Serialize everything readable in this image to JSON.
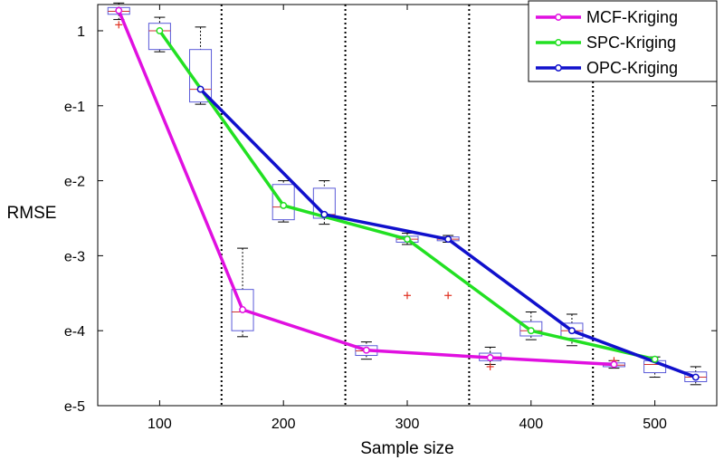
{
  "chart_data": {
    "type": "line",
    "title": "",
    "xlabel": "Sample size",
    "ylabel": "RMSE",
    "x_ticks": [
      "100",
      "200",
      "300",
      "400",
      "500"
    ],
    "x_tick_values": [
      100,
      200,
      300,
      400,
      500
    ],
    "y_ticks": [
      "1",
      "e-1",
      "e-2",
      "e-3",
      "e-4",
      "e-5"
    ],
    "y_tick_values": [
      0,
      -1,
      -2,
      -3,
      -4,
      -5
    ],
    "xlim": [
      50,
      550
    ],
    "ylim_log_exponent": [
      -5,
      0.35
    ],
    "separators_x": [
      150,
      250,
      350,
      450
    ],
    "grid": false,
    "legend": {
      "placement": "top-right",
      "entries": [
        "MCF-Kriging",
        "SPC-Kriging",
        "OPC-Kriging"
      ]
    },
    "series": [
      {
        "name": "MCF-Kriging",
        "color": "#e010e0",
        "x": [
          67,
          167,
          267,
          367,
          467
        ],
        "y_log_exponent": [
          0.27,
          -3.72,
          -4.26,
          -4.36,
          -4.45
        ],
        "boxes": [
          {
            "x": 67,
            "q1": 0.22,
            "median": 0.26,
            "q3": 0.31,
            "whisker_low": 0.15,
            "whisker_high": 0.37,
            "outliers": [
              0.08
            ]
          },
          {
            "x": 167,
            "q1": -4.0,
            "median": -3.75,
            "q3": -3.45,
            "whisker_low": -4.08,
            "whisker_high": -2.9,
            "outliers": []
          },
          {
            "x": 267,
            "q1": -4.33,
            "median": -4.27,
            "q3": -4.2,
            "whisker_low": -4.38,
            "whisker_high": -4.15,
            "outliers": []
          },
          {
            "x": 367,
            "q1": -4.4,
            "median": -4.35,
            "q3": -4.3,
            "whisker_low": -4.45,
            "whisker_high": -4.22,
            "outliers": [
              -4.48
            ]
          },
          {
            "x": 467,
            "q1": -4.48,
            "median": -4.46,
            "q3": -4.43,
            "whisker_low": -4.5,
            "whisker_high": -4.4,
            "outliers": [
              -4.4
            ]
          }
        ]
      },
      {
        "name": "SPC-Kriging",
        "color": "#22e022",
        "x": [
          100,
          200,
          300,
          400,
          500
        ],
        "y_log_exponent": [
          0.0,
          -2.33,
          -2.78,
          -4.0,
          -4.38
        ],
        "boxes": [
          {
            "x": 100,
            "q1": -0.25,
            "median": 0.0,
            "q3": 0.1,
            "whisker_low": -0.28,
            "whisker_high": 0.18,
            "outliers": []
          },
          {
            "x": 200,
            "q1": -2.52,
            "median": -2.35,
            "q3": -2.05,
            "whisker_low": -2.55,
            "whisker_high": -2.0,
            "outliers": []
          },
          {
            "x": 300,
            "q1": -2.82,
            "median": -2.78,
            "q3": -2.74,
            "whisker_low": -2.85,
            "whisker_high": -2.7,
            "outliers": [
              -3.53
            ]
          },
          {
            "x": 400,
            "q1": -4.07,
            "median": -4.0,
            "q3": -3.88,
            "whisker_low": -4.12,
            "whisker_high": -3.75,
            "outliers": []
          },
          {
            "x": 500,
            "q1": -4.56,
            "median": -4.45,
            "q3": -4.4,
            "whisker_low": -4.62,
            "whisker_high": -4.35,
            "outliers": []
          }
        ]
      },
      {
        "name": "OPC-Kriging",
        "color": "#1010cc",
        "x": [
          133,
          233,
          333,
          433,
          533
        ],
        "y_log_exponent": [
          -0.78,
          -2.45,
          -2.78,
          -4.0,
          -4.62
        ],
        "boxes": [
          {
            "x": 133,
            "q1": -0.95,
            "median": -0.78,
            "q3": -0.25,
            "whisker_low": -0.98,
            "whisker_high": 0.05,
            "outliers": []
          },
          {
            "x": 233,
            "q1": -2.5,
            "median": -2.45,
            "q3": -2.1,
            "whisker_low": -2.58,
            "whisker_high": -2.0,
            "outliers": []
          },
          {
            "x": 333,
            "q1": -2.8,
            "median": -2.78,
            "q3": -2.75,
            "whisker_low": -2.82,
            "whisker_high": -2.73,
            "outliers": [
              -3.53
            ]
          },
          {
            "x": 433,
            "q1": -4.1,
            "median": -4.0,
            "q3": -3.9,
            "whisker_low": -4.2,
            "whisker_high": -3.78,
            "outliers": []
          },
          {
            "x": 533,
            "q1": -4.68,
            "median": -4.62,
            "q3": -4.55,
            "whisker_low": -4.72,
            "whisker_high": -4.48,
            "outliers": []
          }
        ]
      }
    ]
  }
}
